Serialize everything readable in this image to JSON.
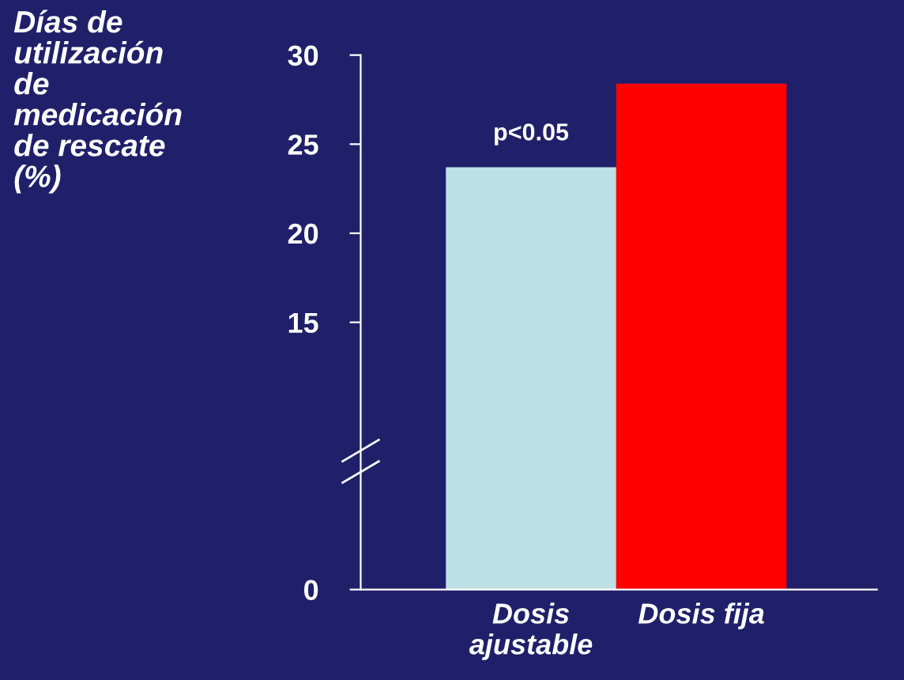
{
  "chart_data": {
    "type": "bar",
    "ylabel": "Días de\nutilización\nde\nmedicación\nde rescate\n(%)",
    "categories": [
      "Dosis\najustable",
      "Dosis fija"
    ],
    "values": [
      23.7,
      28.4
    ],
    "colors": [
      "#bde0e6",
      "#ff0000"
    ],
    "ylim": [
      0,
      30
    ],
    "yticks": [
      0,
      15,
      20,
      25,
      30
    ],
    "annotations": [
      {
        "text": "p<0.05",
        "x": "Dosis\najustable",
        "y": 23.7
      }
    ],
    "grid": false,
    "legend": false
  }
}
